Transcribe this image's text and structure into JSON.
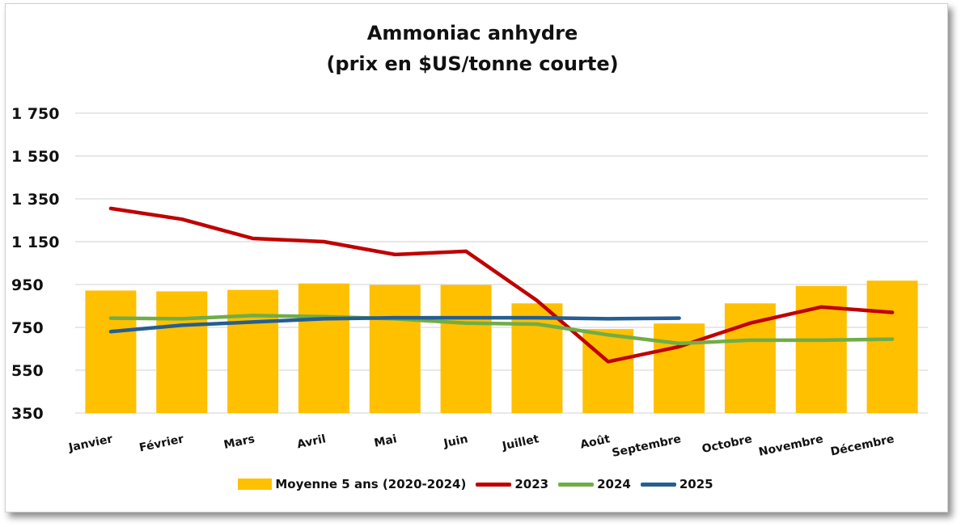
{
  "chart_data": {
    "type": "bar",
    "title": [
      "Ammoniac anhydre",
      "(prix en $US/tonne courte)"
    ],
    "xlabel": "",
    "ylabel": "",
    "ylim": [
      350,
      1750
    ],
    "yticks": [
      "1 750",
      "1 550",
      "1 350",
      "1 150",
      "950",
      "750",
      "550",
      "350"
    ],
    "ytick_values": [
      1750,
      1550,
      1350,
      1150,
      950,
      750,
      550,
      350
    ],
    "grid": true,
    "legend_position": "bottom",
    "categories": [
      "Janvier",
      "Février",
      "Mars",
      "Avril",
      "Mai",
      "Juin",
      "Juillet",
      "Août",
      "Septembre",
      "Octobre",
      "Novembre",
      "Décembre"
    ],
    "bar_series": {
      "name": "Moyenne 5 ans (2020-2024)",
      "color": "#FFC000",
      "values": [
        922,
        918,
        925,
        955,
        948,
        948,
        862,
        742,
        768,
        862,
        943,
        968
      ]
    },
    "line_series": [
      {
        "name": "2023",
        "color": "#C00000",
        "values": [
          1305,
          1255,
          1165,
          1150,
          1090,
          1105,
          875,
          590,
          660,
          770,
          845,
          820
        ]
      },
      {
        "name": "2024",
        "color": "#70AD47",
        "values": [
          793,
          790,
          805,
          800,
          790,
          770,
          765,
          715,
          675,
          690,
          690,
          695
        ]
      },
      {
        "name": "2025",
        "color": "#255E91",
        "values": [
          730,
          760,
          775,
          790,
          795,
          795,
          795,
          790,
          793,
          null,
          null,
          null
        ]
      }
    ]
  }
}
